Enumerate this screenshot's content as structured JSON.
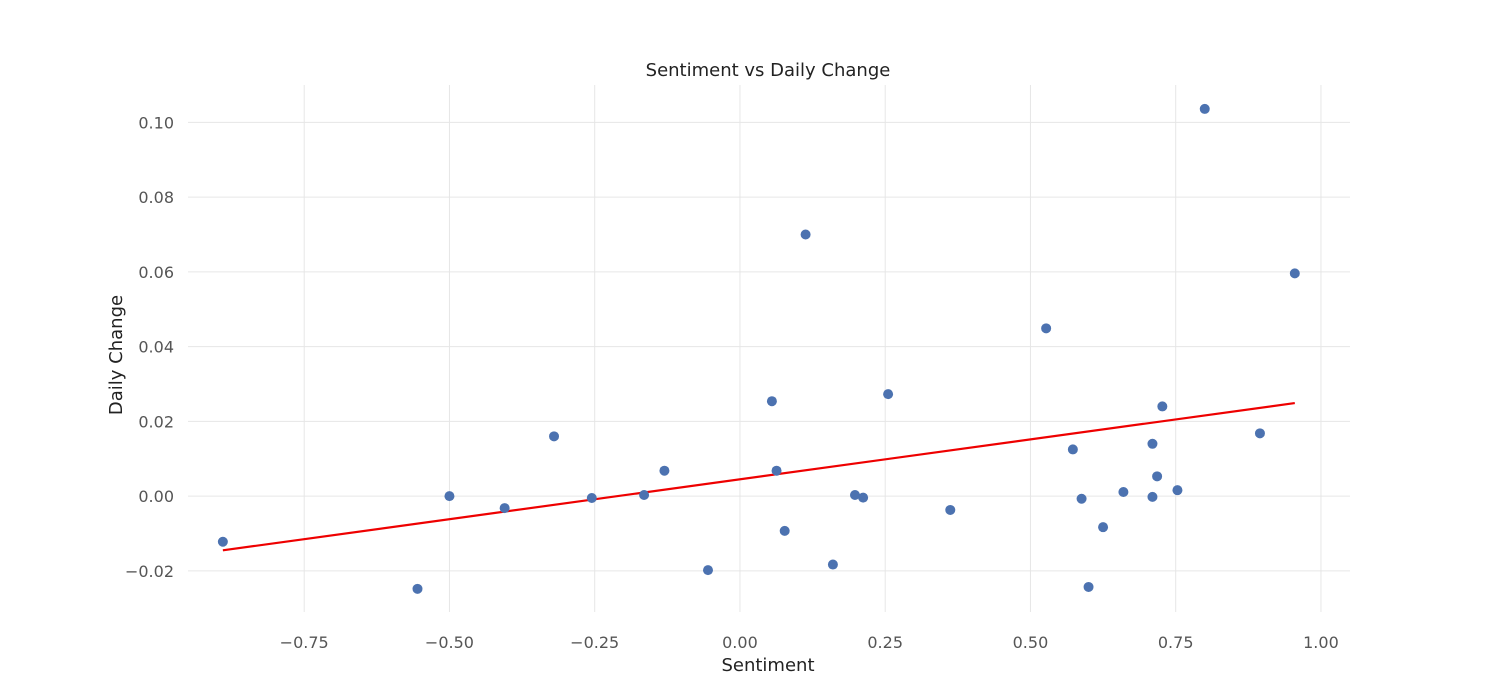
{
  "chart_data": {
    "type": "scatter",
    "title": "Sentiment vs Daily Change",
    "xlabel": "Sentiment",
    "ylabel": "Daily Change",
    "xlim": [
      -0.95,
      1.05
    ],
    "ylim": [
      -0.031,
      0.11
    ],
    "xticks": [
      -0.75,
      -0.5,
      -0.25,
      0.0,
      0.25,
      0.5,
      0.75,
      1.0
    ],
    "xtick_labels": [
      "−0.75",
      "−0.50",
      "−0.25",
      "0.00",
      "0.25",
      "0.50",
      "0.75",
      "1.00"
    ],
    "yticks": [
      -0.02,
      0.0,
      0.02,
      0.04,
      0.06,
      0.08,
      0.1
    ],
    "ytick_labels": [
      "−0.02",
      "0.00",
      "0.02",
      "0.04",
      "0.06",
      "0.08",
      "0.10"
    ],
    "grid": true,
    "marker_color": "#4c72b0",
    "fit_color": "#ee0000",
    "points": [
      {
        "x": -0.89,
        "y": -0.0122
      },
      {
        "x": -0.555,
        "y": -0.0248
      },
      {
        "x": -0.5,
        "y": 0.0
      },
      {
        "x": -0.405,
        "y": -0.0032
      },
      {
        "x": -0.32,
        "y": 0.016
      },
      {
        "x": -0.255,
        "y": -0.0005
      },
      {
        "x": -0.165,
        "y": 0.0003
      },
      {
        "x": -0.13,
        "y": 0.0068
      },
      {
        "x": -0.055,
        "y": -0.0198
      },
      {
        "x": 0.055,
        "y": 0.0254
      },
      {
        "x": 0.063,
        "y": 0.0068
      },
      {
        "x": 0.077,
        "y": -0.0093
      },
      {
        "x": 0.113,
        "y": 0.07
      },
      {
        "x": 0.16,
        "y": -0.0183
      },
      {
        "x": 0.198,
        "y": 0.0003
      },
      {
        "x": 0.212,
        "y": -0.0004
      },
      {
        "x": 0.255,
        "y": 0.0273
      },
      {
        "x": 0.362,
        "y": -0.0037
      },
      {
        "x": 0.527,
        "y": 0.0449
      },
      {
        "x": 0.573,
        "y": 0.0125
      },
      {
        "x": 0.588,
        "y": -0.0007
      },
      {
        "x": 0.6,
        "y": -0.0243
      },
      {
        "x": 0.625,
        "y": -0.0083
      },
      {
        "x": 0.66,
        "y": 0.0011
      },
      {
        "x": 0.71,
        "y": 0.014
      },
      {
        "x": 0.71,
        "y": -0.0002
      },
      {
        "x": 0.718,
        "y": 0.0053
      },
      {
        "x": 0.727,
        "y": 0.024
      },
      {
        "x": 0.753,
        "y": 0.0016
      },
      {
        "x": 0.8,
        "y": 0.1036
      },
      {
        "x": 0.895,
        "y": 0.0168
      },
      {
        "x": 0.955,
        "y": 0.0596
      }
    ],
    "fit_line": {
      "x": [
        -0.89,
        0.955
      ],
      "y": [
        -0.0145,
        0.0249
      ]
    }
  }
}
